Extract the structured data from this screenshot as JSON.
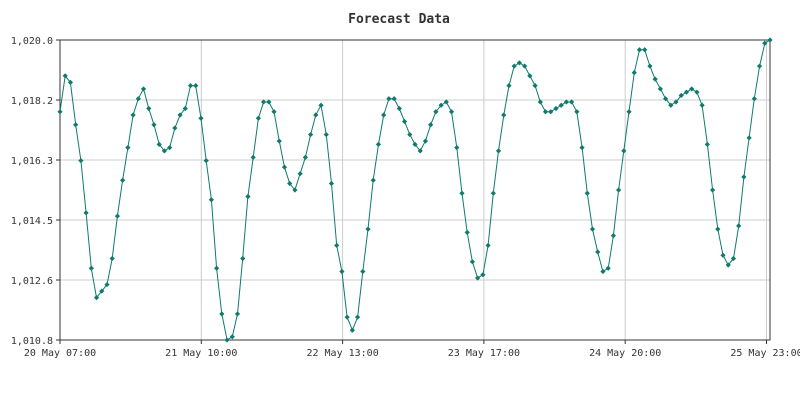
{
  "chart_data": {
    "type": "line",
    "title": "Forecast Data",
    "xlabel": "",
    "ylabel": "",
    "x_ticks": [
      "20 May 07:00",
      "21 May 10:00",
      "22 May 13:00",
      "23 May 17:00",
      "24 May 20:00",
      "25 May 23:00"
    ],
    "y_ticks": [
      "1,010.8",
      "1,012.6",
      "1,014.5",
      "1,016.3",
      "1,018.2",
      "1,020.0"
    ],
    "ylim": [
      1010.8,
      1020.0
    ],
    "grid": true,
    "legend": "none",
    "colors": {
      "series": "#0f7a6e",
      "grid": "#cccccc",
      "axis": "#333333"
    },
    "series": [
      {
        "values": [
          1017.8,
          1018.9,
          1018.7,
          1017.4,
          1016.3,
          1014.7,
          1013.0,
          1012.1,
          1012.3,
          1012.5,
          1013.3,
          1014.6,
          1015.7,
          1016.7,
          1017.7,
          1018.2,
          1018.5,
          1017.9,
          1017.4,
          1016.8,
          1016.6,
          1016.7,
          1017.3,
          1017.7,
          1017.9,
          1018.6,
          1018.6,
          1017.6,
          1016.3,
          1015.1,
          1013.0,
          1011.6,
          1010.8,
          1010.9,
          1011.6,
          1013.3,
          1015.2,
          1016.4,
          1017.6,
          1018.1,
          1018.1,
          1017.8,
          1016.9,
          1016.1,
          1015.6,
          1015.4,
          1015.9,
          1016.4,
          1017.1,
          1017.7,
          1018.0,
          1017.1,
          1015.6,
          1013.7,
          1012.9,
          1011.5,
          1011.1,
          1011.5,
          1012.9,
          1014.2,
          1015.7,
          1016.8,
          1017.7,
          1018.2,
          1018.2,
          1017.9,
          1017.5,
          1017.1,
          1016.8,
          1016.6,
          1016.9,
          1017.4,
          1017.8,
          1018.0,
          1018.1,
          1017.8,
          1016.7,
          1015.3,
          1014.1,
          1013.2,
          1012.7,
          1012.8,
          1013.7,
          1015.3,
          1016.6,
          1017.7,
          1018.6,
          1019.2,
          1019.3,
          1019.2,
          1018.9,
          1018.6,
          1018.1,
          1017.8,
          1017.8,
          1017.9,
          1018.0,
          1018.1,
          1018.1,
          1017.8,
          1016.7,
          1015.3,
          1014.2,
          1013.5,
          1012.9,
          1013.0,
          1014.0,
          1015.4,
          1016.6,
          1017.8,
          1019.0,
          1019.7,
          1019.7,
          1019.2,
          1018.8,
          1018.5,
          1018.2,
          1018.0,
          1018.1,
          1018.3,
          1018.4,
          1018.5,
          1018.4,
          1018.0,
          1016.8,
          1015.4,
          1014.2,
          1013.4,
          1013.1,
          1013.3,
          1014.3,
          1015.8,
          1017.0,
          1018.2,
          1019.2,
          1019.9,
          1020.0
        ]
      }
    ]
  }
}
